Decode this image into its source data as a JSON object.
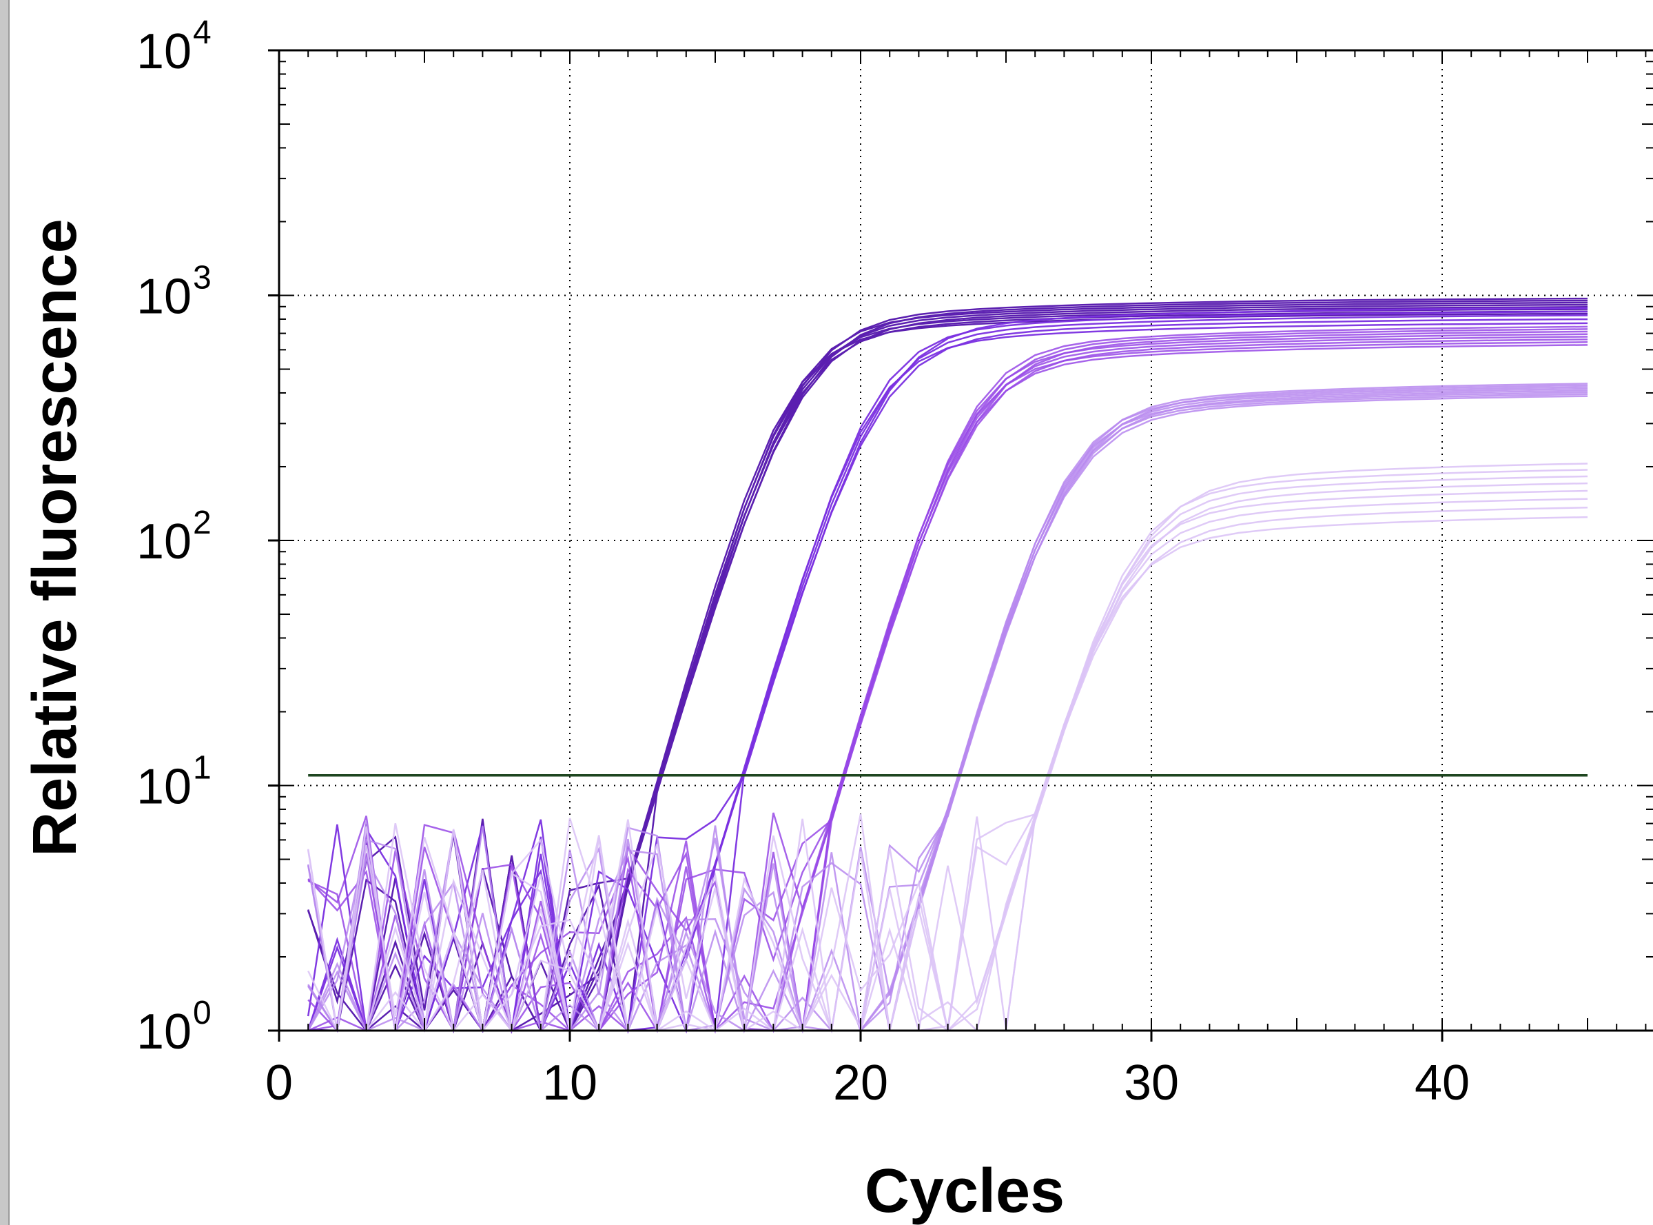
{
  "chart_data": {
    "type": "line",
    "title": "",
    "xlabel": "Cycles",
    "ylabel": "Relative fluorescence",
    "x_range": [
      0,
      47
    ],
    "y_scale": "log",
    "y_range": [
      1,
      10000
    ],
    "x_ticks": [
      0,
      10,
      20,
      30,
      40
    ],
    "y_ticks": [
      {
        "value": 1,
        "base": "10",
        "exp": "0"
      },
      {
        "value": 10,
        "base": "10",
        "exp": "1"
      },
      {
        "value": 100,
        "base": "10",
        "exp": "2"
      },
      {
        "value": 1000,
        "base": "10",
        "exp": "3"
      },
      {
        "value": 10000,
        "base": "10",
        "exp": "4"
      }
    ],
    "grid": true,
    "threshold": {
      "value": 11,
      "x_start": 1,
      "x_end": 45,
      "color": "#1e4620"
    },
    "cycles": [
      1,
      45
    ],
    "dilution_groups": [
      {
        "color": "#5b1fb0",
        "opacity": 1.0,
        "ct": 12.5,
        "plateau": [
          850,
          980
        ],
        "members": 8
      },
      {
        "color": "#7a2fe0",
        "opacity": 0.95,
        "ct": 15.9,
        "plateau": [
          780,
          900
        ],
        "members": 5
      },
      {
        "color": "#9648e6",
        "opacity": 0.85,
        "ct": 19.0,
        "plateau": [
          640,
          760
        ],
        "members": 8
      },
      {
        "color": "#b788ee",
        "opacity": 0.85,
        "ct": 22.6,
        "plateau": [
          400,
          450
        ],
        "members": 8
      },
      {
        "color": "#dcc4f6",
        "opacity": 0.9,
        "ct": 26.2,
        "plateau": [
          130,
          215
        ],
        "members": 8
      }
    ]
  }
}
